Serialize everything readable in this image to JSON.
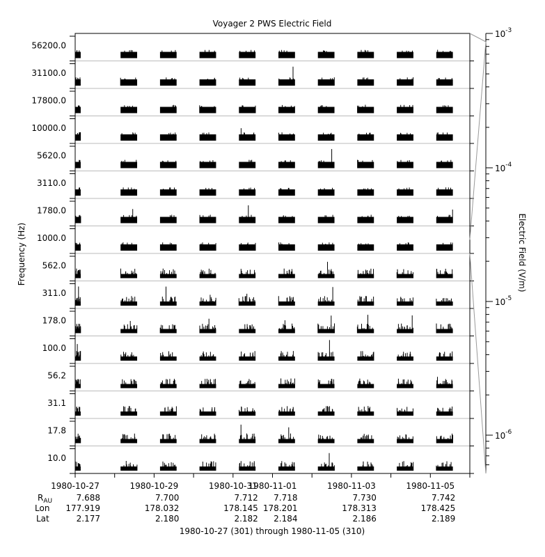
{
  "chart_data": {
    "type": "stacked-channel-spectrum",
    "title": "Voyager 2 PWS Electric Field",
    "ylabel": "Frequency (Hz)",
    "colorbar_label": "Electric Field (V/m)",
    "colorbar_scale": "log",
    "colorbar_ticks": [
      {
        "base": "10",
        "exp": "-3"
      },
      {
        "base": "10",
        "exp": "-4"
      },
      {
        "base": "10",
        "exp": "-5"
      },
      {
        "base": "10",
        "exp": "-6"
      }
    ],
    "channels": [
      "56200.0",
      "31100.0",
      "17800.0",
      "10000.0",
      "5620.0",
      "3110.0",
      "1780.0",
      "1000.0",
      "562.0",
      "311.0",
      "178.0",
      "100.0",
      "56.2",
      "31.1",
      "17.8",
      "10.0"
    ],
    "x_range": [
      "1980-10-27",
      "1980-11-05"
    ],
    "x_ticks": [
      {
        "date": "1980-10-27",
        "r_au": "7.688",
        "lon": "177.919",
        "lat": "2.177"
      },
      {
        "date": "1980-10-29",
        "r_au": "7.700",
        "lon": "178.032",
        "lat": "2.180"
      },
      {
        "date": "1980-10-31",
        "r_au": "7.712",
        "lon": "178.145",
        "lat": "2.182"
      },
      {
        "date": "1980-11-01",
        "r_au": "7.718",
        "lon": "178.201",
        "lat": "2.184"
      },
      {
        "date": "1980-11-03",
        "r_au": "7.730",
        "lon": "178.313",
        "lat": "2.186"
      },
      {
        "date": "1980-11-05",
        "r_au": "7.742",
        "lon": "178.425",
        "lat": "2.189"
      }
    ],
    "ephemeris_labels": {
      "r": "R",
      "r_sub": "AU",
      "lon": "Lon",
      "lat": "Lat"
    },
    "footer": "1980-10-27 (301) through 1980-11-05 (310)",
    "data_day_blocks": [
      "10-27",
      "10-28",
      "10-29",
      "10-30",
      "10-31",
      "11-01",
      "11-02",
      "11-03",
      "11-04",
      "11-05"
    ]
  }
}
